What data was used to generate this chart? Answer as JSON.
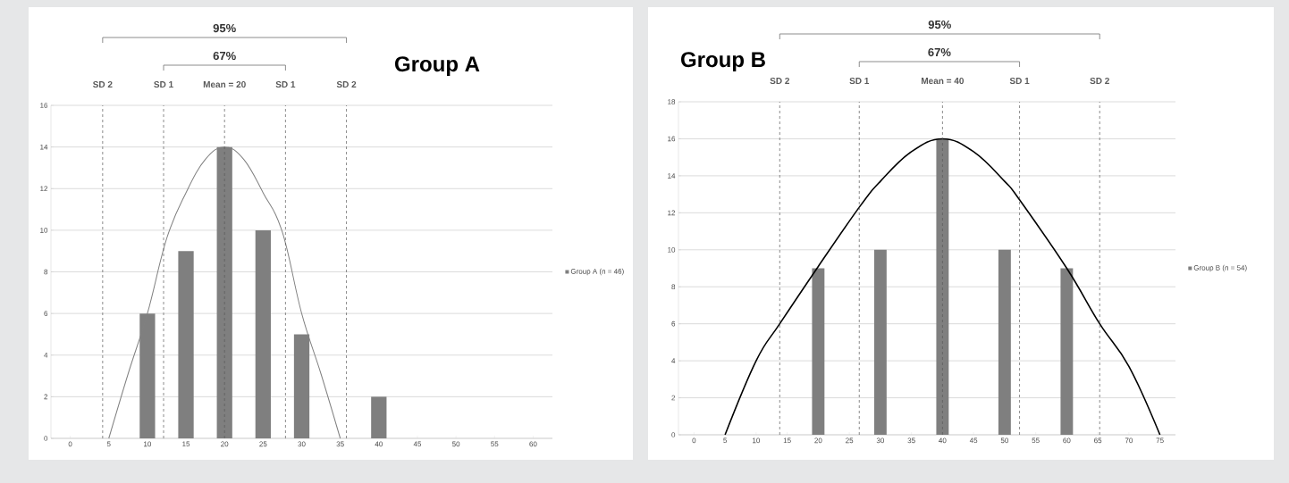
{
  "chart_data": [
    {
      "type": "bar",
      "title": "Group A",
      "x": [
        0,
        5,
        10,
        15,
        20,
        25,
        30,
        35,
        40,
        45,
        50,
        55,
        60
      ],
      "series": [
        {
          "name": "Group A (n = 46)",
          "color": "#7f7f7f",
          "values": [
            0,
            0,
            6,
            9,
            14,
            10,
            5,
            0,
            2,
            0,
            0,
            0,
            0
          ]
        },
        {
          "type": "line",
          "color": "#808080",
          "x": [
            5,
            7.5,
            10,
            12.5,
            15,
            17.5,
            20,
            22.5,
            25,
            27.5,
            30,
            32.5,
            35
          ],
          "values": [
            0,
            3.1,
            6,
            9.6,
            11.8,
            13.4,
            14,
            13.4,
            11.8,
            9.9,
            6,
            3.1,
            0
          ]
        }
      ],
      "xlim": [
        -2.5,
        62.5
      ],
      "xticks": [
        0,
        5,
        10,
        15,
        20,
        25,
        30,
        35,
        40,
        45,
        50,
        55,
        60
      ],
      "ylim": [
        0,
        16
      ],
      "yticks": [
        0,
        2,
        4,
        6,
        8,
        10,
        12,
        14,
        16
      ],
      "grid": "y",
      "legend": "right",
      "ref_lines": [
        {
          "axis": "x",
          "value": 4.2,
          "label": "SD 2",
          "color": "#595959",
          "line_style": "dashed"
        },
        {
          "axis": "x",
          "value": 12.1,
          "label": "SD  1",
          "color": "#595959",
          "line_style": "dashed"
        },
        {
          "axis": "x",
          "value": 20,
          "label": "Mean = 20",
          "color": "#595959",
          "line_style": "dashed"
        },
        {
          "axis": "x",
          "value": 27.9,
          "label": "SD 1",
          "color": "#595959",
          "line_style": "dashed"
        },
        {
          "axis": "x",
          "value": 35.8,
          "label": "SD 2",
          "color": "#595959",
          "line_style": "dashed"
        }
      ],
      "annotations": [
        "95%",
        "67%"
      ]
    },
    {
      "type": "bar",
      "title": "Group B",
      "x": [
        0,
        5,
        10,
        15,
        20,
        25,
        30,
        35,
        40,
        45,
        50,
        55,
        60,
        65,
        70,
        75
      ],
      "series": [
        {
          "name": "Group B (n = 54)",
          "color": "#7f7f7f",
          "values": [
            0,
            0,
            0,
            0,
            9,
            0,
            10,
            0,
            16,
            0,
            10,
            0,
            9,
            0,
            0,
            0
          ]
        },
        {
          "type": "line",
          "color": "#000000",
          "x": [
            5,
            10,
            13.8,
            20,
            26.6,
            30,
            35,
            40,
            45,
            50,
            52.4,
            60,
            65.3,
            70,
            75
          ],
          "values": [
            0,
            4,
            6,
            9.1,
            12.3,
            13.7,
            15.3,
            16,
            15.3,
            13.7,
            12.7,
            9,
            6,
            3.7,
            0
          ]
        }
      ],
      "xlim": [
        -2.5,
        77.5
      ],
      "xticks": [
        0,
        5,
        10,
        15,
        20,
        25,
        30,
        35,
        40,
        45,
        50,
        55,
        60,
        65,
        70,
        75
      ],
      "ylim": [
        0,
        18
      ],
      "yticks": [
        0,
        2,
        4,
        6,
        8,
        10,
        12,
        14,
        16,
        18
      ],
      "grid": "y",
      "legend": "right",
      "ref_lines": [
        {
          "axis": "x",
          "value": 13.8,
          "label": "SD 2",
          "color": "#595959",
          "line_style": "dashed"
        },
        {
          "axis": "x",
          "value": 26.6,
          "label": "SD  1",
          "color": "#595959",
          "line_style": "dashed"
        },
        {
          "axis": "x",
          "value": 40,
          "label": "Mean = 40",
          "color": "#595959",
          "line_style": "dashed"
        },
        {
          "axis": "x",
          "value": 52.4,
          "label": "SD  1",
          "color": "#595959",
          "line_style": "dashed"
        },
        {
          "axis": "x",
          "value": 65.3,
          "label": "SD 2",
          "color": "#595959",
          "line_style": "dashed"
        }
      ],
      "annotations": [
        "95%",
        "67%"
      ]
    }
  ]
}
